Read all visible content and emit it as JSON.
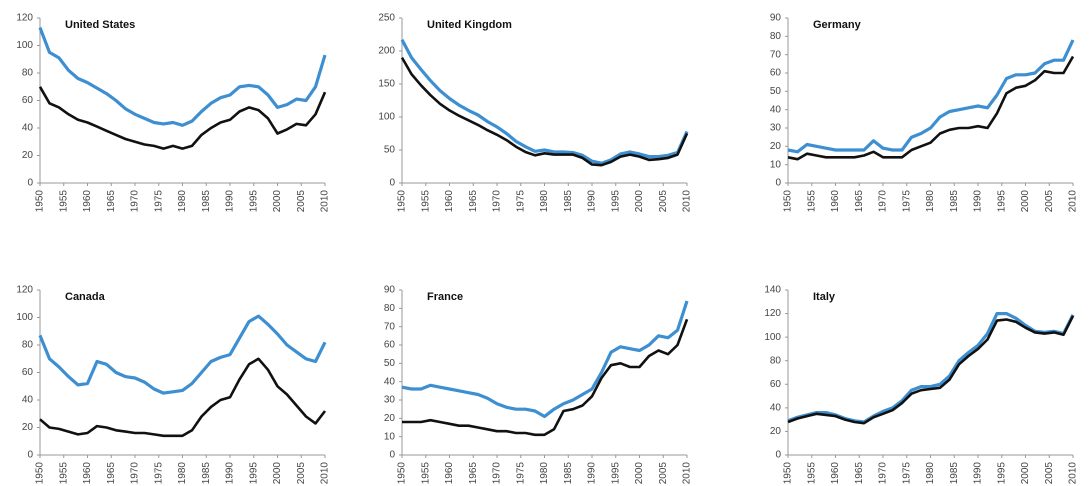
{
  "chart_data": [
    {
      "type": "line",
      "title": "United States",
      "x": [
        1950,
        1952,
        1954,
        1956,
        1958,
        1960,
        1962,
        1964,
        1966,
        1968,
        1970,
        1972,
        1974,
        1976,
        1978,
        1980,
        1982,
        1984,
        1986,
        1988,
        1990,
        1992,
        1994,
        1996,
        1998,
        2000,
        2002,
        2004,
        2006,
        2008,
        2010
      ],
      "series": [
        {
          "color": "#3d8fd1",
          "values": [
            113,
            95,
            91,
            82,
            76,
            73,
            69,
            65,
            60,
            54,
            50,
            47,
            44,
            43,
            44,
            42,
            45,
            52,
            58,
            62,
            64,
            70,
            71,
            70,
            64,
            55,
            57,
            61,
            60,
            70,
            93
          ]
        },
        {
          "color": "#111111",
          "values": [
            70,
            58,
            55,
            50,
            46,
            44,
            41,
            38,
            35,
            32,
            30,
            28,
            27,
            25,
            27,
            25,
            27,
            35,
            40,
            44,
            46,
            52,
            55,
            53,
            47,
            36,
            39,
            43,
            42,
            50,
            66
          ]
        }
      ],
      "xlim": [
        1950,
        2010
      ],
      "xticks": [
        1950,
        1955,
        1960,
        1965,
        1970,
        1975,
        1980,
        1985,
        1990,
        1995,
        2000,
        2005,
        2010
      ],
      "ylim": [
        0,
        120
      ],
      "yticks": [
        0,
        20,
        40,
        60,
        80,
        100,
        120
      ]
    },
    {
      "type": "line",
      "title": "United Kingdom",
      "x": [
        1950,
        1952,
        1954,
        1956,
        1958,
        1960,
        1962,
        1964,
        1966,
        1968,
        1970,
        1972,
        1974,
        1976,
        1978,
        1980,
        1982,
        1984,
        1986,
        1988,
        1990,
        1992,
        1994,
        1996,
        1998,
        2000,
        2002,
        2004,
        2006,
        2008,
        2010
      ],
      "series": [
        {
          "color": "#3d8fd1",
          "values": [
            217,
            190,
            172,
            155,
            140,
            128,
            118,
            110,
            103,
            93,
            85,
            75,
            63,
            55,
            48,
            50,
            47,
            47,
            46,
            42,
            33,
            30,
            35,
            44,
            47,
            44,
            40,
            40,
            42,
            46,
            78
          ]
        },
        {
          "color": "#111111",
          "values": [
            190,
            165,
            148,
            133,
            120,
            110,
            102,
            95,
            88,
            80,
            73,
            65,
            55,
            47,
            42,
            45,
            43,
            43,
            43,
            38,
            28,
            27,
            32,
            40,
            43,
            40,
            35,
            36,
            38,
            43,
            75
          ]
        }
      ],
      "xlim": [
        1950,
        2010
      ],
      "xticks": [
        1950,
        1955,
        1960,
        1965,
        1970,
        1975,
        1980,
        1985,
        1990,
        1995,
        2000,
        2005,
        2010
      ],
      "ylim": [
        0,
        250
      ],
      "yticks": [
        0,
        50,
        100,
        150,
        200,
        250
      ]
    },
    {
      "type": "line",
      "title": "Germany",
      "x": [
        1950,
        1952,
        1954,
        1956,
        1958,
        1960,
        1962,
        1964,
        1966,
        1968,
        1970,
        1972,
        1974,
        1976,
        1978,
        1980,
        1982,
        1984,
        1986,
        1988,
        1990,
        1992,
        1994,
        1996,
        1998,
        2000,
        2002,
        2004,
        2006,
        2008,
        2010
      ],
      "series": [
        {
          "color": "#3d8fd1",
          "values": [
            18,
            17,
            21,
            20,
            19,
            18,
            18,
            18,
            18,
            23,
            19,
            18,
            18,
            25,
            27,
            30,
            36,
            39,
            40,
            41,
            42,
            41,
            48,
            57,
            59,
            59,
            60,
            65,
            67,
            67,
            78
          ]
        },
        {
          "color": "#111111",
          "values": [
            14,
            13,
            16,
            15,
            14,
            14,
            14,
            14,
            15,
            17,
            14,
            14,
            14,
            18,
            20,
            22,
            27,
            29,
            30,
            30,
            31,
            30,
            38,
            49,
            52,
            53,
            56,
            61,
            60,
            60,
            69
          ]
        }
      ],
      "xlim": [
        1950,
        2010
      ],
      "xticks": [
        1950,
        1955,
        1960,
        1965,
        1970,
        1975,
        1980,
        1985,
        1990,
        1995,
        2000,
        2005,
        2010
      ],
      "ylim": [
        0,
        90
      ],
      "yticks": [
        0,
        10,
        20,
        30,
        40,
        50,
        60,
        70,
        80,
        90
      ]
    },
    {
      "type": "line",
      "title": "Canada",
      "x": [
        1950,
        1952,
        1954,
        1956,
        1958,
        1960,
        1962,
        1964,
        1966,
        1968,
        1970,
        1972,
        1974,
        1976,
        1978,
        1980,
        1982,
        1984,
        1986,
        1988,
        1990,
        1992,
        1994,
        1996,
        1998,
        2000,
        2002,
        2004,
        2006,
        2008,
        2010
      ],
      "series": [
        {
          "color": "#3d8fd1",
          "values": [
            87,
            70,
            64,
            57,
            51,
            52,
            68,
            66,
            60,
            57,
            56,
            53,
            48,
            45,
            46,
            47,
            52,
            60,
            68,
            71,
            73,
            85,
            97,
            101,
            95,
            88,
            80,
            75,
            70,
            68,
            82
          ]
        },
        {
          "color": "#111111",
          "values": [
            26,
            20,
            19,
            17,
            15,
            16,
            21,
            20,
            18,
            17,
            16,
            16,
            15,
            14,
            14,
            14,
            18,
            28,
            35,
            40,
            42,
            55,
            66,
            70,
            62,
            50,
            44,
            36,
            28,
            23,
            32
          ]
        }
      ],
      "xlim": [
        1950,
        2010
      ],
      "xticks": [
        1950,
        1955,
        1960,
        1965,
        1970,
        1975,
        1980,
        1985,
        1990,
        1995,
        2000,
        2005,
        2010
      ],
      "ylim": [
        0,
        120
      ],
      "yticks": [
        0,
        20,
        40,
        60,
        80,
        100,
        120
      ]
    },
    {
      "type": "line",
      "title": "France",
      "x": [
        1950,
        1952,
        1954,
        1956,
        1958,
        1960,
        1962,
        1964,
        1966,
        1968,
        1970,
        1972,
        1974,
        1976,
        1978,
        1980,
        1982,
        1984,
        1986,
        1988,
        1990,
        1992,
        1994,
        1996,
        1998,
        2000,
        2002,
        2004,
        2006,
        2008,
        2010
      ],
      "series": [
        {
          "color": "#3d8fd1",
          "values": [
            37,
            36,
            36,
            38,
            37,
            36,
            35,
            34,
            33,
            31,
            28,
            26,
            25,
            25,
            24,
            21,
            25,
            28,
            30,
            33,
            36,
            45,
            56,
            59,
            58,
            57,
            60,
            65,
            64,
            68,
            84
          ]
        },
        {
          "color": "#111111",
          "values": [
            18,
            18,
            18,
            19,
            18,
            17,
            16,
            16,
            15,
            14,
            13,
            13,
            12,
            12,
            11,
            11,
            14,
            24,
            25,
            27,
            32,
            42,
            49,
            50,
            48,
            48,
            54,
            57,
            55,
            60,
            74
          ]
        }
      ],
      "xlim": [
        1950,
        2010
      ],
      "xticks": [
        1950,
        1955,
        1960,
        1965,
        1970,
        1975,
        1980,
        1985,
        1990,
        1995,
        2000,
        2005,
        2010
      ],
      "ylim": [
        0,
        90
      ],
      "yticks": [
        0,
        10,
        20,
        30,
        40,
        50,
        60,
        70,
        80,
        90
      ]
    },
    {
      "type": "line",
      "title": "Italy",
      "x": [
        1950,
        1952,
        1954,
        1956,
        1958,
        1960,
        1962,
        1964,
        1966,
        1968,
        1970,
        1972,
        1974,
        1976,
        1978,
        1980,
        1982,
        1984,
        1986,
        1988,
        1990,
        1992,
        1994,
        1996,
        1998,
        2000,
        2002,
        2004,
        2006,
        2008,
        2010
      ],
      "series": [
        {
          "color": "#3d8fd1",
          "values": [
            29,
            32,
            34,
            36,
            36,
            34,
            31,
            29,
            28,
            33,
            37,
            40,
            46,
            55,
            58,
            58,
            60,
            67,
            80,
            87,
            93,
            103,
            120,
            120,
            116,
            110,
            105,
            104,
            105,
            103,
            119
          ]
        },
        {
          "color": "#111111",
          "values": [
            28,
            31,
            33,
            35,
            34,
            33,
            30,
            28,
            27,
            32,
            35,
            38,
            44,
            52,
            55,
            56,
            57,
            64,
            77,
            84,
            90,
            98,
            114,
            115,
            113,
            108,
            104,
            103,
            104,
            102,
            118
          ]
        }
      ],
      "xlim": [
        1950,
        2010
      ],
      "xticks": [
        1950,
        1955,
        1960,
        1965,
        1970,
        1975,
        1980,
        1985,
        1990,
        1995,
        2000,
        2005,
        2010
      ],
      "ylim": [
        0,
        140
      ],
      "yticks": [
        0,
        20,
        40,
        60,
        80,
        100,
        120,
        140
      ]
    }
  ]
}
